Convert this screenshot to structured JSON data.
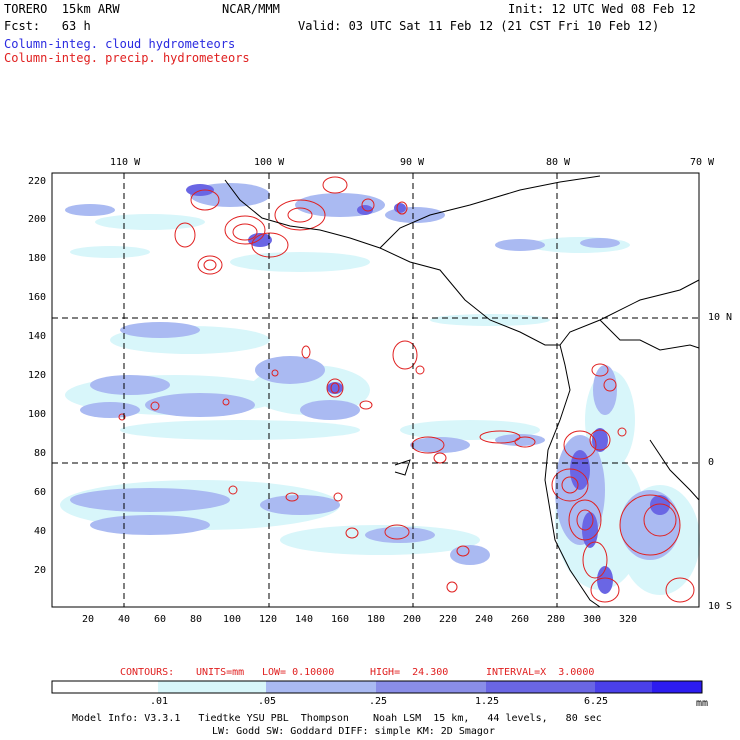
{
  "header": {
    "model": "TORERO  15km ARW",
    "center": "NCAR/MMM",
    "init": "Init: 12 UTC Wed 08 Feb 12",
    "fcst": "Fcst:   63 h",
    "valid": "Valid: 03 UTC Sat 11 Feb 12 (21 CST Fri 10 Feb 12)",
    "field_cloud": "Column-integ. cloud hydrometeors",
    "field_precip": "Column-integ. precip. hydrometeors"
  },
  "map": {
    "lon_labels": [
      "110 W",
      "100 W",
      "90 W",
      "80 W",
      "70 W"
    ],
    "lat_labels": [
      "10 N",
      "0",
      "10 S"
    ],
    "y_ticks": [
      "220",
      "200",
      "180",
      "160",
      "140",
      "120",
      "100",
      "80",
      "60",
      "40",
      "20"
    ],
    "x_ticks": [
      "20",
      "40",
      "60",
      "80",
      "100",
      "120",
      "140",
      "160",
      "180",
      "200",
      "220",
      "240",
      "260",
      "280",
      "300",
      "320"
    ]
  },
  "contours_info": {
    "label": "CONTOURS:",
    "units": "UNITS=mm",
    "low": "LOW= 0.10000",
    "high": "HIGH=  24.300",
    "interval": "INTERVAL=X  3.0000"
  },
  "colorbar": {
    "labels": [
      ".01",
      ".05",
      ".25",
      "1.25",
      "6.25"
    ],
    "units": "mm",
    "colors": [
      "#ffffff",
      "#d8f6fa",
      "#aabaf2",
      "#8a8ee8",
      "#6a66e4",
      "#4a40ea",
      "#2c1cf0"
    ]
  },
  "footer": {
    "line1": "Model Info: V3.3.1   Tiedtke YSU PBL  Thompson    Noah LSM  15 km,   44 levels,   80 sec",
    "line2": "LW: Godd SW: Goddard DIFF: simple KM: 2D Smagor"
  }
}
